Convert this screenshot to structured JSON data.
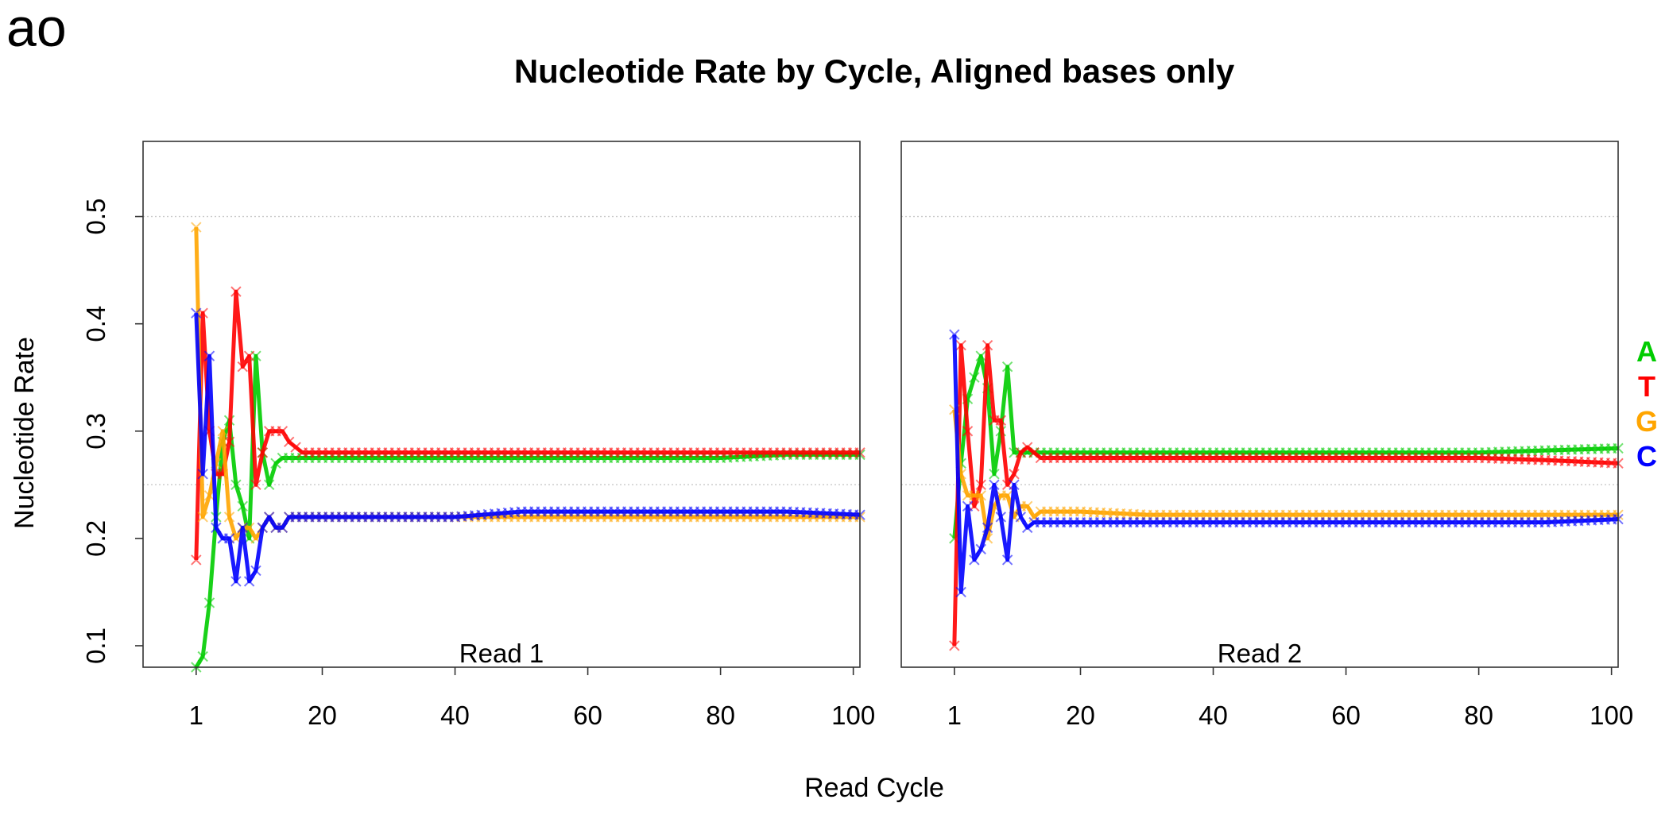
{
  "panel_tag": "ao",
  "chart_data": {
    "type": "line",
    "title": "Nucleotide Rate by Cycle, Aligned bases only",
    "xlabel": "Read Cycle",
    "ylabel": "Nucleotide Rate",
    "ylim": [
      0.08,
      0.57
    ],
    "y_ticks": [
      "0.1",
      "0.2",
      "0.3",
      "0.4",
      "0.5"
    ],
    "x_ticks": [
      "1",
      "20",
      "40",
      "60",
      "80",
      "100"
    ],
    "reference_lines": [
      0.25,
      0.5
    ],
    "legend_placement": "right",
    "legend": [
      {
        "name": "A",
        "color": "#00cc00"
      },
      {
        "name": "T",
        "color": "#ff0000"
      },
      {
        "name": "G",
        "color": "#ffa500"
      },
      {
        "name": "C",
        "color": "#0000ff"
      }
    ],
    "panels": [
      {
        "label": "Read 1",
        "xlim": [
          -7,
          101
        ],
        "series": [
          {
            "name": "A",
            "color": "#00cc00",
            "x": [
              1,
              2,
              3,
              4,
              5,
              6,
              7,
              8,
              9,
              10,
              11,
              12,
              13,
              14,
              15,
              17,
              20,
              30,
              40,
              50,
              60,
              70,
              80,
              90,
              101
            ],
            "y": [
              0.08,
              0.09,
              0.14,
              0.22,
              0.29,
              0.31,
              0.25,
              0.23,
              0.2,
              0.37,
              0.28,
              0.25,
              0.27,
              0.275,
              0.275,
              0.275,
              0.275,
              0.275,
              0.275,
              0.275,
              0.275,
              0.275,
              0.275,
              0.278,
              0.278
            ]
          },
          {
            "name": "T",
            "color": "#ff0000",
            "x": [
              1,
              2,
              3,
              4,
              5,
              6,
              7,
              8,
              9,
              10,
              11,
              12,
              13,
              14,
              15,
              17,
              20,
              30,
              40,
              50,
              60,
              70,
              80,
              90,
              101
            ],
            "y": [
              0.18,
              0.41,
              0.3,
              0.26,
              0.26,
              0.29,
              0.43,
              0.36,
              0.37,
              0.25,
              0.28,
              0.3,
              0.3,
              0.3,
              0.29,
              0.28,
              0.28,
              0.28,
              0.28,
              0.28,
              0.28,
              0.28,
              0.28,
              0.28,
              0.28
            ]
          },
          {
            "name": "G",
            "color": "#ffa500",
            "x": [
              1,
              2,
              3,
              4,
              5,
              6,
              7,
              8,
              9,
              10,
              11,
              12,
              13,
              14,
              15,
              17,
              20,
              30,
              40,
              50,
              60,
              70,
              80,
              90,
              101
            ],
            "y": [
              0.49,
              0.22,
              0.24,
              0.27,
              0.3,
              0.22,
              0.2,
              0.21,
              0.21,
              0.2,
              0.21,
              0.22,
              0.21,
              0.21,
              0.22,
              0.22,
              0.22,
              0.22,
              0.22,
              0.22,
              0.22,
              0.22,
              0.22,
              0.22,
              0.22
            ]
          },
          {
            "name": "C",
            "color": "#0000ff",
            "x": [
              1,
              2,
              3,
              4,
              5,
              6,
              7,
              8,
              9,
              10,
              11,
              12,
              13,
              14,
              15,
              17,
              20,
              30,
              40,
              50,
              60,
              70,
              80,
              90,
              101
            ],
            "y": [
              0.41,
              0.26,
              0.37,
              0.21,
              0.2,
              0.2,
              0.16,
              0.21,
              0.16,
              0.17,
              0.21,
              0.22,
              0.21,
              0.21,
              0.22,
              0.22,
              0.22,
              0.22,
              0.22,
              0.225,
              0.225,
              0.225,
              0.225,
              0.225,
              0.222
            ]
          }
        ]
      },
      {
        "label": "Read 2",
        "xlim": [
          -7,
          101
        ],
        "series": [
          {
            "name": "A",
            "color": "#00cc00",
            "x": [
              1,
              2,
              3,
              4,
              5,
              6,
              7,
              8,
              9,
              10,
              11,
              12,
              13,
              14,
              15,
              17,
              20,
              30,
              40,
              50,
              60,
              70,
              80,
              90,
              101
            ],
            "y": [
              0.2,
              0.27,
              0.33,
              0.35,
              0.37,
              0.34,
              0.26,
              0.3,
              0.36,
              0.28,
              0.28,
              0.28,
              0.28,
              0.28,
              0.28,
              0.28,
              0.28,
              0.28,
              0.28,
              0.28,
              0.28,
              0.28,
              0.28,
              0.282,
              0.284
            ]
          },
          {
            "name": "T",
            "color": "#ff0000",
            "x": [
              1,
              2,
              3,
              4,
              5,
              6,
              7,
              8,
              9,
              10,
              11,
              12,
              13,
              14,
              15,
              17,
              20,
              30,
              40,
              50,
              60,
              70,
              80,
              90,
              101
            ],
            "y": [
              0.1,
              0.38,
              0.3,
              0.23,
              0.25,
              0.38,
              0.31,
              0.31,
              0.25,
              0.26,
              0.28,
              0.285,
              0.28,
              0.275,
              0.275,
              0.275,
              0.275,
              0.275,
              0.275,
              0.275,
              0.275,
              0.275,
              0.275,
              0.273,
              0.27
            ]
          },
          {
            "name": "G",
            "color": "#ffa500",
            "x": [
              1,
              2,
              3,
              4,
              5,
              6,
              7,
              8,
              9,
              10,
              11,
              12,
              13,
              14,
              15,
              17,
              20,
              30,
              40,
              50,
              60,
              70,
              80,
              90,
              101
            ],
            "y": [
              0.32,
              0.26,
              0.24,
              0.24,
              0.24,
              0.2,
              0.23,
              0.24,
              0.24,
              0.22,
              0.23,
              0.23,
              0.22,
              0.225,
              0.225,
              0.225,
              0.225,
              0.222,
              0.222,
              0.222,
              0.222,
              0.222,
              0.222,
              0.222,
              0.222
            ]
          },
          {
            "name": "C",
            "color": "#0000ff",
            "x": [
              1,
              2,
              3,
              4,
              5,
              6,
              7,
              8,
              9,
              10,
              11,
              12,
              13,
              14,
              15,
              17,
              20,
              30,
              40,
              50,
              60,
              70,
              80,
              90,
              101
            ],
            "y": [
              0.39,
              0.15,
              0.23,
              0.18,
              0.19,
              0.21,
              0.25,
              0.22,
              0.18,
              0.25,
              0.22,
              0.21,
              0.215,
              0.215,
              0.215,
              0.215,
              0.215,
              0.215,
              0.215,
              0.215,
              0.215,
              0.215,
              0.215,
              0.215,
              0.218
            ]
          }
        ]
      }
    ]
  }
}
